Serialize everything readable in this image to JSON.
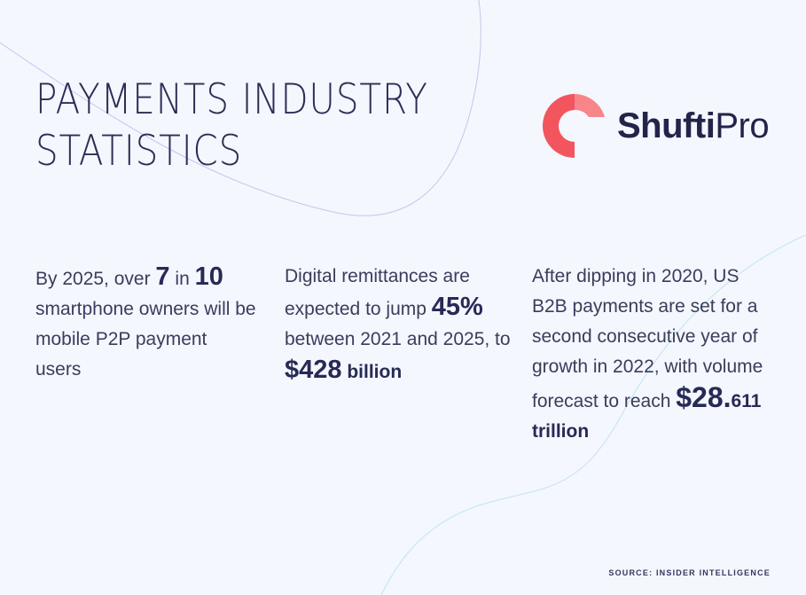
{
  "title": {
    "line1": "PAYMENTS INDUSTRY",
    "line2": "STATISTICS"
  },
  "logo": {
    "word_bold": "Shufti",
    "word_light": "Pro",
    "accent_color": "#f2555e"
  },
  "stats": [
    {
      "prefix": "By 2025, over ",
      "n1": "7",
      "mid": " in ",
      "n2": "10",
      "suffix": " smartphone owners will be mobile P2P payment users"
    },
    {
      "prefix": "Digital remittances are expected to jump ",
      "pct": "45%",
      "mid": " between 2021 and 2025, to ",
      "amount": "$428",
      "unit": " billion"
    },
    {
      "prefix": "After dipping in 2020, US B2B payments are set for a second consecutive year of growth in 2022, with volume forecast to reach ",
      "amount": "$28.",
      "unit": "611 trillion"
    }
  ],
  "source": "SOURCE: INSIDER INTELLIGENCE",
  "colors": {
    "background": "#f4f7fd",
    "heading": "#2b2e55",
    "body_text": "#3a3d5c",
    "curve_purple": "#c9c4f0",
    "curve_teal": "#bfe6ec"
  }
}
